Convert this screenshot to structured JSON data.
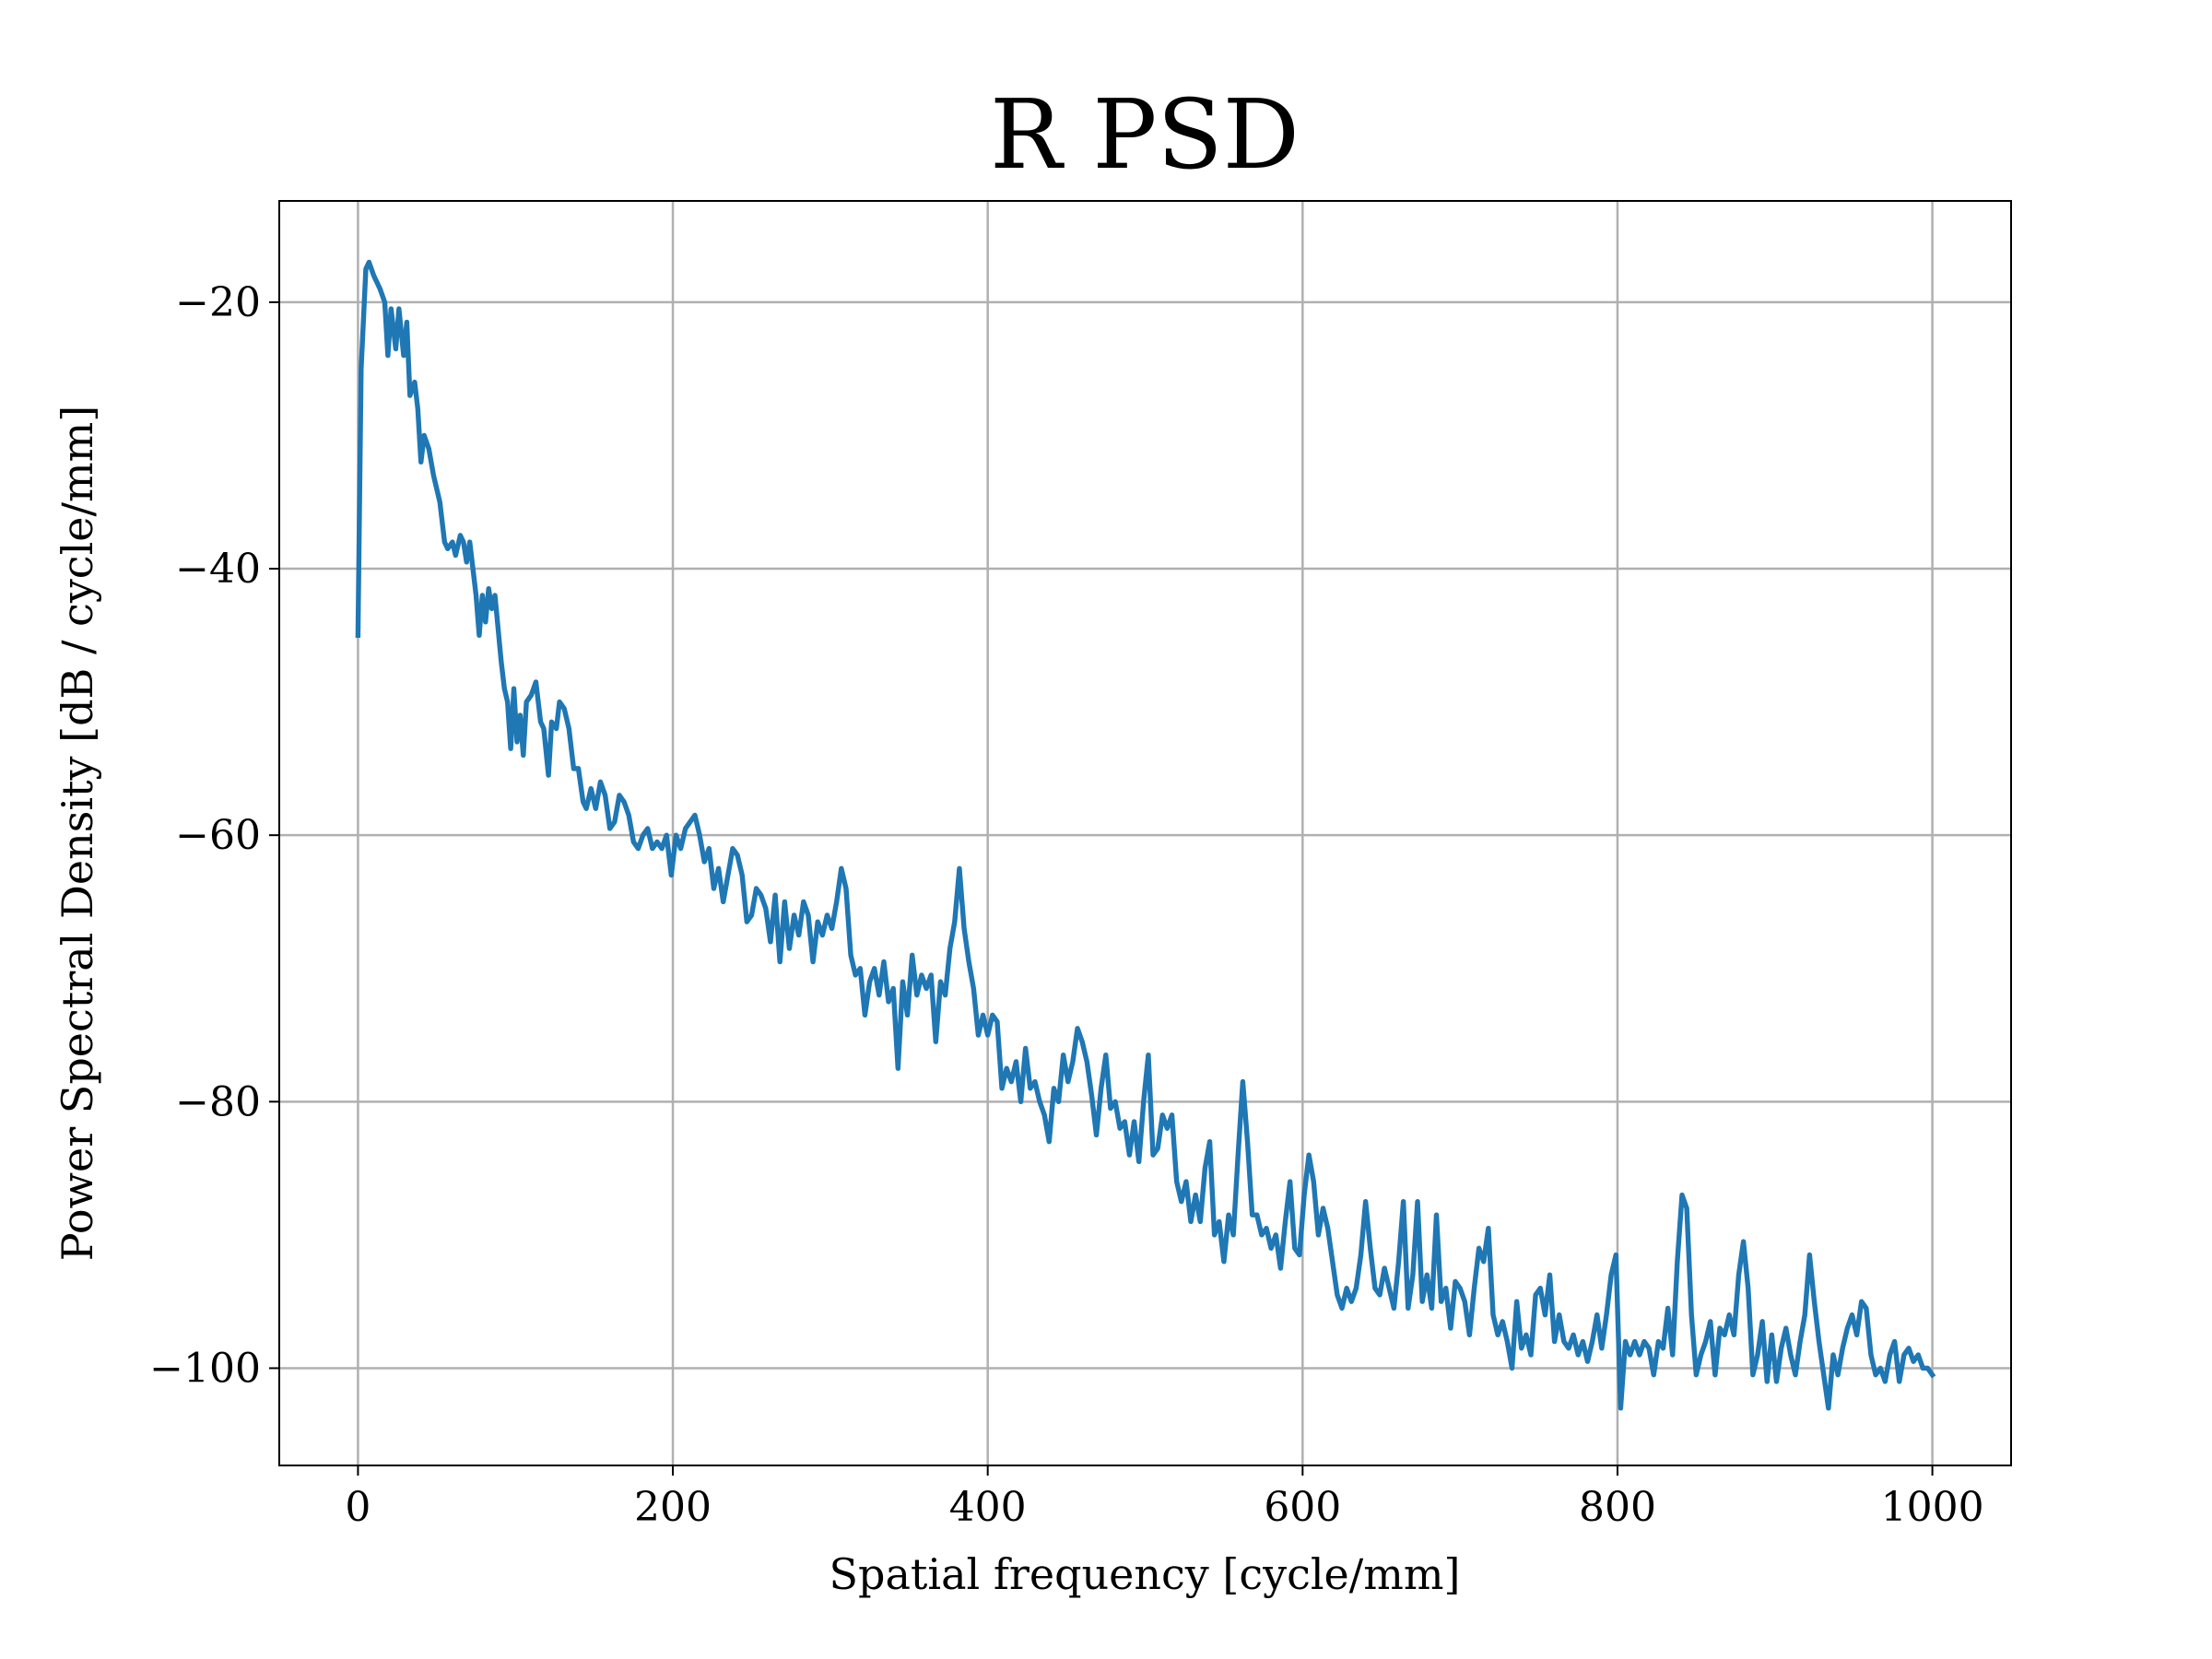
{
  "chart_data": {
    "type": "line",
    "title": "R PSD",
    "xlabel": "Spatial frequency [cycle/mm]",
    "ylabel": "Power Spectral Density [dB / cycle/mm]",
    "color": "#1f77b4",
    "grid": true,
    "xlim": [
      -50,
      1050
    ],
    "ylim": [
      -107.3,
      -12.4
    ],
    "xticks": [
      0,
      200,
      400,
      600,
      800,
      1000
    ],
    "yticks": [
      {
        "value": -100,
        "label": "−100"
      },
      {
        "value": -80,
        "label": "−80"
      },
      {
        "value": -60,
        "label": "−60"
      },
      {
        "value": -40,
        "label": "−40"
      },
      {
        "value": -20,
        "label": "−20"
      }
    ],
    "x": [
      0,
      2,
      5,
      7,
      10,
      14,
      17,
      19,
      21,
      24,
      26,
      29,
      31,
      33,
      36,
      38,
      40,
      42,
      45,
      48,
      52,
      55,
      57,
      60,
      62,
      65,
      67,
      69,
      71,
      73,
      75,
      77,
      79,
      81,
      83,
      85,
      87,
      89,
      91,
      93,
      95,
      97,
      99,
      101,
      103,
      105,
      107,
      110,
      113,
      116,
      118,
      121,
      123,
      126,
      128,
      131,
      134,
      137,
      140,
      143,
      145,
      148,
      151,
      154,
      157,
      160,
      163,
      166,
      169,
      172,
      175,
      178,
      181,
      184,
      187,
      190,
      193,
      196,
      199,
      202,
      205,
      208,
      211,
      214,
      217,
      220,
      223,
      226,
      229,
      232,
      235,
      238,
      241,
      244,
      247,
      250,
      253,
      256,
      259,
      262,
      265,
      268,
      271,
      274,
      277,
      280,
      283,
      286,
      289,
      292,
      295,
      298,
      301,
      304,
      307,
      310,
      313,
      316,
      319,
      322,
      325,
      328,
      331,
      334,
      337,
      340,
      343,
      346,
      349,
      352,
      355,
      358,
      361,
      364,
      367,
      370,
      373,
      376,
      379,
      382,
      385,
      388,
      391,
      394,
      397,
      400,
      403,
      406,
      409,
      412,
      415,
      418,
      421,
      424,
      427,
      430,
      433,
      436,
      439,
      442,
      445,
      448,
      451,
      454,
      457,
      460,
      463,
      466,
      469,
      472,
      475,
      478,
      481,
      484,
      487,
      490,
      493,
      496,
      499,
      502,
      505,
      508,
      511,
      514,
      517,
      520,
      523,
      526,
      529,
      532,
      535,
      538,
      541,
      544,
      547,
      550,
      553,
      556,
      559,
      562,
      565,
      568,
      571,
      574,
      577,
      580,
      583,
      586,
      589,
      592,
      595,
      598,
      601,
      604,
      607,
      610,
      613,
      616,
      619,
      622,
      625,
      628,
      631,
      634,
      637,
      640,
      643,
      646,
      649,
      652,
      655,
      658,
      661,
      664,
      667,
      670,
      673,
      676,
      679,
      682,
      685,
      688,
      691,
      694,
      697,
      700,
      703,
      706,
      709,
      712,
      715,
      718,
      721,
      724,
      727,
      730,
      733,
      736,
      739,
      742,
      745,
      748,
      751,
      754,
      757,
      760,
      763,
      766,
      769,
      772,
      775,
      778,
      781,
      784,
      787,
      790,
      793,
      796,
      799,
      802,
      805,
      808,
      811,
      814,
      817,
      820,
      823,
      826,
      829,
      832,
      835,
      838,
      841,
      844,
      847,
      850,
      853,
      856,
      859,
      862,
      865,
      868,
      871,
      874,
      877,
      880,
      883,
      886,
      889,
      892,
      895,
      898,
      901,
      904,
      907,
      910,
      913,
      916,
      919,
      922,
      925,
      928,
      931,
      934,
      937,
      940,
      943,
      946,
      949,
      952,
      955,
      958,
      961,
      964,
      967,
      970,
      973,
      976,
      979,
      982,
      985,
      988,
      991,
      994,
      997,
      1000
    ],
    "values": [
      -45,
      -25,
      -17.5,
      -17,
      -18,
      -19,
      -20,
      -24,
      -20.5,
      -23.5,
      -20.5,
      -24,
      -21.5,
      -27,
      -26,
      -28,
      -32,
      -30,
      -31,
      -33,
      -35,
      -38,
      -38.5,
      -38,
      -39,
      -37.5,
      -38,
      -39.5,
      -38,
      -40,
      -42,
      -45,
      -42,
      -44,
      -41.5,
      -43,
      -42,
      -44.5,
      -47,
      -49,
      -50,
      -53.5,
      -49,
      -53,
      -51,
      -54,
      -50,
      -49.5,
      -48.5,
      -51.5,
      -52,
      -55.5,
      -51.5,
      -52,
      -50,
      -50.5,
      -52,
      -55,
      -55,
      -57.5,
      -58,
      -56.5,
      -58,
      -56,
      -57,
      -59.5,
      -59,
      -57,
      -57.5,
      -58.5,
      -60.5,
      -61,
      -60,
      -59.5,
      -61,
      -60.5,
      -61,
      -60,
      -63,
      -60,
      -61,
      -59.5,
      -59,
      -58.5,
      -60,
      -62,
      -61,
      -64,
      -62.5,
      -65,
      -63,
      -61,
      -61.5,
      -63,
      -66.5,
      -66,
      -64,
      -64.5,
      -65.5,
      -68,
      -64.5,
      -69.5,
      -65,
      -68.5,
      -66,
      -67.5,
      -65,
      -66,
      -69.5,
      -66.5,
      -67.5,
      -66,
      -67,
      -65,
      -62.5,
      -64,
      -69,
      -70.5,
      -70,
      -73.5,
      -71,
      -70,
      -72,
      -69.5,
      -72.5,
      -71.5,
      -77.5,
      -71,
      -73.5,
      -69,
      -72,
      -70.5,
      -71.5,
      -70.5,
      -75.5,
      -71,
      -72,
      -68.5,
      -66.5,
      -62.5,
      -67,
      -69.5,
      -71.5,
      -75,
      -73.5,
      -75,
      -73.5,
      -74,
      -79,
      -77.5,
      -78.5,
      -77,
      -80,
      -76,
      -79,
      -78.5,
      -80,
      -81,
      -83,
      -79,
      -80,
      -76.5,
      -78.5,
      -77,
      -74.5,
      -75.5,
      -77,
      -79.5,
      -82.5,
      -79,
      -76.5,
      -80.5,
      -80,
      -82,
      -81.5,
      -84,
      -81.5,
      -84.5,
      -80,
      -76.5,
      -84,
      -83.5,
      -81,
      -82,
      -81,
      -86,
      -87.5,
      -86,
      -89,
      -87,
      -89,
      -85,
      -83,
      -90,
      -89,
      -92,
      -88.5,
      -90,
      -84,
      -78.5,
      -83,
      -88.5,
      -88.5,
      -90,
      -89.5,
      -91,
      -90,
      -92.5,
      -89,
      -86,
      -91,
      -91.5,
      -87,
      -84,
      -86,
      -90,
      -88,
      -89.5,
      -92,
      -94.5,
      -95.5,
      -94,
      -95,
      -94,
      -91.5,
      -87.5,
      -91,
      -94,
      -94.5,
      -92.5,
      -94,
      -95.5,
      -92,
      -87.5,
      -95.5,
      -93,
      -87.5,
      -95,
      -93,
      -95.5,
      -88.5,
      -95,
      -94,
      -97,
      -93.5,
      -94,
      -95,
      -97.5,
      -94,
      -91,
      -92,
      -89.5,
      -96,
      -97.5,
      -96.5,
      -98,
      -100,
      -95,
      -98.5,
      -97.5,
      -99,
      -94.5,
      -94,
      -96,
      -93,
      -98,
      -96,
      -98,
      -98.5,
      -97.5,
      -99,
      -98,
      -99.5,
      -98,
      -96,
      -98.5,
      -96,
      -93,
      -91.5,
      -103,
      -98,
      -99,
      -98,
      -99,
      -98,
      -98.5,
      -100.5,
      -98,
      -98.5,
      -95.5,
      -99,
      -92,
      -87,
      -88,
      -96,
      -100.5,
      -99,
      -98,
      -96.5,
      -100.5,
      -97,
      -97.5,
      -96,
      -97.5,
      -93,
      -90.5,
      -94,
      -100.5,
      -99,
      -96.5,
      -101,
      -97.5,
      -101,
      -98.5,
      -97,
      -99,
      -100.5,
      -98,
      -96,
      -91.5,
      -95,
      -98,
      -100.5,
      -103,
      -99,
      -100.5,
      -98.5,
      -97,
      -96,
      -97.5,
      -95,
      -95.5,
      -99,
      -100.5,
      -100,
      -101,
      -99,
      -98,
      -101,
      -99,
      -98.5,
      -99.5,
      -99,
      -100,
      -100,
      -100.5
    ]
  }
}
